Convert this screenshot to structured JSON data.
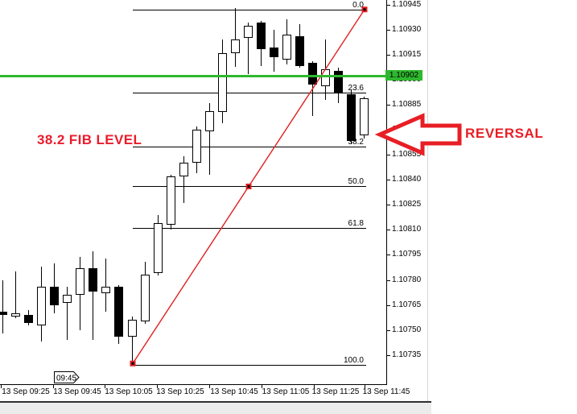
{
  "annotations": {
    "fib_note": {
      "text": "38.2 FIB LEVEL",
      "color": "#ea1c2c"
    },
    "reversal_note": {
      "text": "REVERSAL",
      "color": "#e81e25"
    },
    "arrow_icon": "left-block-arrow",
    "arrow_color": "#e81e25"
  },
  "price_axis": {
    "labels": [
      "1.10945",
      "1.10930",
      "1.10915",
      "1.10900",
      "1.10885",
      "1.10870",
      "1.10855",
      "1.10840",
      "1.10825",
      "1.10810",
      "1.10795",
      "1.10780",
      "1.10765",
      "1.10750",
      "1.10735"
    ],
    "current_price_tag": {
      "text": "1.10902",
      "bg": "#2eb82e"
    }
  },
  "time_axis": {
    "labels": [
      "13 Sep 09:25",
      "13 Sep 09:45",
      "13 Sep 10:05",
      "13 Sep 10:25",
      "13 Sep 10:45",
      "13 Sep 11:05",
      "13 Sep 11:25",
      "13 Sep 11:45"
    ],
    "flag": {
      "label": "09:45"
    }
  },
  "chart_data": {
    "type": "candlestick",
    "timeframe_minutes": 5,
    "y_axis": {
      "min": 1.10735,
      "max": 1.10945,
      "tick_step": 0.00015,
      "grid": false
    },
    "hline": {
      "price": 1.10902,
      "label": "1.10902",
      "color": "#2eb82e"
    },
    "fibonacci": {
      "color": "#000000",
      "levels": [
        {
          "label": "0.0",
          "price": 1.10942
        },
        {
          "label": "23.6",
          "price": 1.10892
        },
        {
          "label": "38.2",
          "price": 1.1086
        },
        {
          "label": "50.0",
          "price": 1.10836
        },
        {
          "label": "61.8",
          "price": 1.10811
        },
        {
          "label": "100.0",
          "price": 1.10729
        }
      ]
    },
    "trendline": {
      "from_price": 1.1073,
      "to_price": 1.10942,
      "color": "#e02020"
    },
    "candles": [
      {
        "o": 1.10761,
        "h": 1.1078,
        "l": 1.10748,
        "c": 1.10759
      },
      {
        "o": 1.10758,
        "h": 1.10785,
        "l": 1.10757,
        "c": 1.1076
      },
      {
        "o": 1.10759,
        "h": 1.10762,
        "l": 1.10753,
        "c": 1.10754
      },
      {
        "o": 1.10753,
        "h": 1.10788,
        "l": 1.10743,
        "c": 1.10776
      },
      {
        "o": 1.10776,
        "h": 1.1079,
        "l": 1.1076,
        "c": 1.10765
      },
      {
        "o": 1.10766,
        "h": 1.10776,
        "l": 1.10744,
        "c": 1.10771
      },
      {
        "o": 1.10771,
        "h": 1.10794,
        "l": 1.1075,
        "c": 1.10787
      },
      {
        "o": 1.10787,
        "h": 1.10797,
        "l": 1.10744,
        "c": 1.10773
      },
      {
        "o": 1.10772,
        "h": 1.10793,
        "l": 1.10761,
        "c": 1.10776
      },
      {
        "o": 1.10776,
        "h": 1.10777,
        "l": 1.10742,
        "c": 1.10746
      },
      {
        "o": 1.10746,
        "h": 1.10758,
        "l": 1.1073,
        "c": 1.10756
      },
      {
        "o": 1.10755,
        "h": 1.10791,
        "l": 1.10754,
        "c": 1.10783
      },
      {
        "o": 1.10784,
        "h": 1.10819,
        "l": 1.10783,
        "c": 1.10814
      },
      {
        "o": 1.10813,
        "h": 1.10843,
        "l": 1.1081,
        "c": 1.10842
      },
      {
        "o": 1.10842,
        "h": 1.10854,
        "l": 1.10826,
        "c": 1.1085
      },
      {
        "o": 1.1085,
        "h": 1.10872,
        "l": 1.10844,
        "c": 1.1087
      },
      {
        "o": 1.10869,
        "h": 1.10886,
        "l": 1.10843,
        "c": 1.10881
      },
      {
        "o": 1.10881,
        "h": 1.10924,
        "l": 1.10874,
        "c": 1.10916
      },
      {
        "o": 1.10916,
        "h": 1.10943,
        "l": 1.10908,
        "c": 1.10924
      },
      {
        "o": 1.10925,
        "h": 1.10934,
        "l": 1.10903,
        "c": 1.10932
      },
      {
        "o": 1.10934,
        "h": 1.10935,
        "l": 1.10908,
        "c": 1.10918
      },
      {
        "o": 1.10919,
        "h": 1.1093,
        "l": 1.10905,
        "c": 1.10913
      },
      {
        "o": 1.10912,
        "h": 1.10936,
        "l": 1.10909,
        "c": 1.10927
      },
      {
        "o": 1.10926,
        "h": 1.10933,
        "l": 1.10907,
        "c": 1.10908
      },
      {
        "o": 1.1091,
        "h": 1.10911,
        "l": 1.10878,
        "c": 1.10897
      },
      {
        "o": 1.10896,
        "h": 1.10924,
        "l": 1.10888,
        "c": 1.10906
      },
      {
        "o": 1.10905,
        "h": 1.10907,
        "l": 1.10886,
        "c": 1.10892
      },
      {
        "o": 1.10891,
        "h": 1.10894,
        "l": 1.10861,
        "c": 1.10863
      },
      {
        "o": 1.10867,
        "h": 1.1089,
        "l": 1.10865,
        "c": 1.10889
      }
    ]
  }
}
